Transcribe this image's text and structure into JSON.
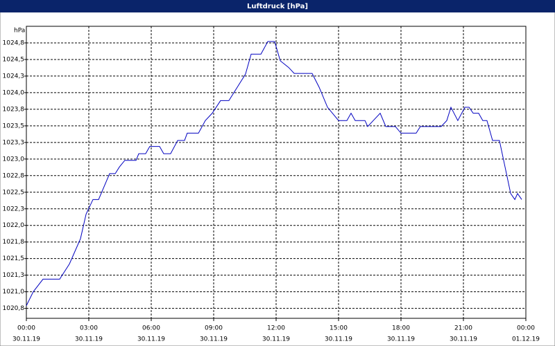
{
  "chart_data": {
    "type": "line",
    "title": "Luftdruck [hPa]",
    "y_label": "hPa",
    "x": [
      0,
      0.33,
      0.8,
      1.6,
      2.07,
      2.6,
      2.87,
      3.2,
      3.47,
      4.0,
      4.27,
      4.47,
      4.73,
      5.27,
      5.4,
      5.73,
      5.93,
      6.4,
      6.6,
      6.93,
      7.27,
      7.6,
      7.73,
      8.27,
      8.6,
      8.93,
      9.33,
      9.73,
      10.13,
      10.53,
      10.8,
      11.27,
      11.6,
      11.93,
      12.2,
      12.6,
      12.87,
      13.73,
      14.07,
      14.47,
      15.0,
      15.4,
      15.6,
      15.8,
      16.27,
      16.4,
      16.67,
      17.0,
      17.27,
      17.73,
      18.0,
      18.73,
      18.93,
      19.93,
      20.2,
      20.4,
      20.73,
      21.07,
      21.27,
      21.47,
      21.73,
      21.93,
      22.13,
      22.4,
      22.73,
      23.0,
      23.27,
      23.47,
      23.6,
      23.8
    ],
    "series": [
      {
        "name": "Luftdruck",
        "color": "#0000c0",
        "values": [
          1020.79,
          1021.0,
          1021.19,
          1021.19,
          1021.42,
          1021.8,
          1022.17,
          1022.39,
          1022.39,
          1022.78,
          1022.78,
          1022.88,
          1022.98,
          1022.98,
          1023.08,
          1023.08,
          1023.19,
          1023.19,
          1023.08,
          1023.08,
          1023.28,
          1023.28,
          1023.39,
          1023.39,
          1023.58,
          1023.69,
          1023.88,
          1023.88,
          1024.08,
          1024.28,
          1024.58,
          1024.58,
          1024.77,
          1024.77,
          1024.48,
          1024.38,
          1024.29,
          1024.29,
          1024.08,
          1023.78,
          1023.58,
          1023.58,
          1023.69,
          1023.58,
          1023.58,
          1023.49,
          1023.58,
          1023.69,
          1023.49,
          1023.49,
          1023.39,
          1023.39,
          1023.49,
          1023.49,
          1023.58,
          1023.78,
          1023.58,
          1023.78,
          1023.78,
          1023.69,
          1023.69,
          1023.58,
          1023.58,
          1023.28,
          1023.28,
          1022.88,
          1022.48,
          1022.39,
          1022.48,
          1022.39
        ]
      }
    ],
    "xlim": [
      0,
      24
    ],
    "xticks": [
      {
        "value": 0,
        "label": "00:00"
      },
      {
        "value": 3,
        "label": "03:00"
      },
      {
        "value": 6,
        "label": "06:00"
      },
      {
        "value": 9,
        "label": "09:00"
      },
      {
        "value": 12,
        "label": "12:00"
      },
      {
        "value": 15,
        "label": "15:00"
      },
      {
        "value": 18,
        "label": "18:00"
      },
      {
        "value": 21,
        "label": "21:00"
      },
      {
        "value": 24,
        "label": "00:00"
      }
    ],
    "xtick_dates": [
      "30.11.19",
      "30.11.19",
      "30.11.19",
      "30.11.19",
      "30.11.19",
      "30.11.19",
      "30.11.19",
      "30.11.19",
      "01.12.19"
    ],
    "ylim": [
      1020.6,
      1025.0
    ],
    "yticks": [
      {
        "value": 1020.75,
        "label": "1020,8"
      },
      {
        "value": 1021.0,
        "label": "1021,0"
      },
      {
        "value": 1021.25,
        "label": "1021,3"
      },
      {
        "value": 1021.5,
        "label": "1021,5"
      },
      {
        "value": 1021.75,
        "label": "1021,8"
      },
      {
        "value": 1022.0,
        "label": "1022,0"
      },
      {
        "value": 1022.25,
        "label": "1022,3"
      },
      {
        "value": 1022.5,
        "label": "1022,5"
      },
      {
        "value": 1022.75,
        "label": "1022,8"
      },
      {
        "value": 1023.0,
        "label": "1023,0"
      },
      {
        "value": 1023.25,
        "label": "1023,3"
      },
      {
        "value": 1023.5,
        "label": "1023,5"
      },
      {
        "value": 1023.75,
        "label": "1023,8"
      },
      {
        "value": 1024.0,
        "label": "1024,0"
      },
      {
        "value": 1024.25,
        "label": "1024,3"
      },
      {
        "value": 1024.5,
        "label": "1024,5"
      },
      {
        "value": 1024.75,
        "label": "1024,8"
      }
    ],
    "grid": true
  }
}
